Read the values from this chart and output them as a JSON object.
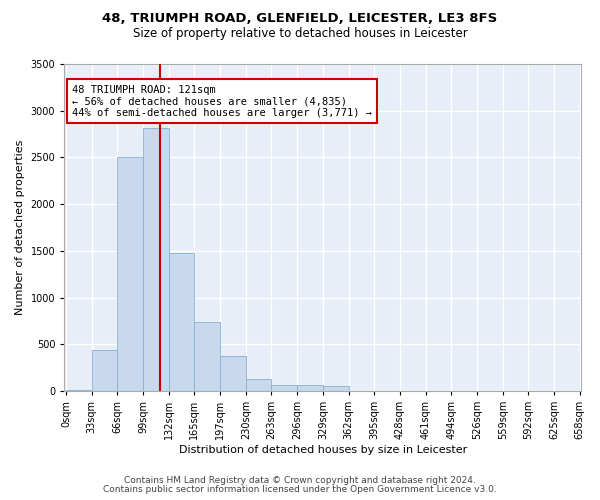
{
  "title1": "48, TRIUMPH ROAD, GLENFIELD, LEICESTER, LE3 8FS",
  "title2": "Size of property relative to detached houses in Leicester",
  "xlabel": "Distribution of detached houses by size in Leicester",
  "ylabel": "Number of detached properties",
  "bar_color": "#c8d9ee",
  "bar_edge_color": "#8ab0d4",
  "background_color": "#e8eef8",
  "grid_color": "#ffffff",
  "vline_color": "#cc0000",
  "vline_x": 121,
  "annotation_text": "48 TRIUMPH ROAD: 121sqm\n← 56% of detached houses are smaller (4,835)\n44% of semi-detached houses are larger (3,771) →",
  "annotation_box_color": "#ffffff",
  "annotation_box_edge": "#cc0000",
  "bin_width": 33,
  "bin_starts": [
    0,
    33,
    66,
    99,
    132,
    165,
    198,
    231,
    264,
    297,
    330,
    363,
    396,
    429,
    462,
    495,
    528,
    561,
    594,
    627
  ],
  "bar_heights": [
    10,
    440,
    2500,
    2820,
    1480,
    740,
    380,
    130,
    70,
    70,
    55,
    0,
    0,
    0,
    0,
    0,
    0,
    0,
    0,
    0
  ],
  "ylim": [
    0,
    3500
  ],
  "yticks": [
    0,
    500,
    1000,
    1500,
    2000,
    2500,
    3000,
    3500
  ],
  "tick_labels": [
    "0sqm",
    "33sqm",
    "66sqm",
    "99sqm",
    "132sqm",
    "165sqm",
    "197sqm",
    "230sqm",
    "263sqm",
    "296sqm",
    "329sqm",
    "362sqm",
    "395sqm",
    "428sqm",
    "461sqm",
    "494sqm",
    "526sqm",
    "559sqm",
    "592sqm",
    "625sqm",
    "658sqm"
  ],
  "footer1": "Contains HM Land Registry data © Crown copyright and database right 2024.",
  "footer2": "Contains public sector information licensed under the Open Government Licence v3.0.",
  "title_fontsize": 9.5,
  "subtitle_fontsize": 8.5,
  "axis_label_fontsize": 8,
  "tick_fontsize": 7,
  "annotation_fontsize": 7.5,
  "footer_fontsize": 6.5
}
